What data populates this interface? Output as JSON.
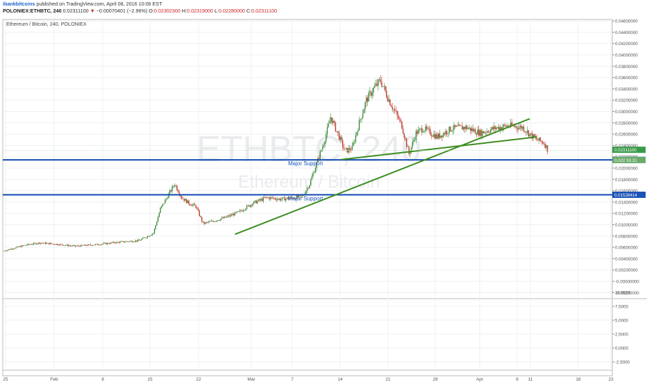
{
  "header": {
    "author": "ibankbitcoins",
    "published": "published on TradingView.com, April 08, 2016 10:06 EST",
    "symbol": "POLONIEX:ETHBTC, 240",
    "last": "0.02311100",
    "change_arrow": "▼",
    "change": "−0.00070401 (−2.96%)",
    "o_label": "O:",
    "o": "0.02302300",
    "h_label": "H:",
    "h": "0.02319000",
    "l_label": "L:",
    "l": "0.02280000",
    "c_label": "C:",
    "c": "0.02311100"
  },
  "chart_data": {
    "type": "candlestick",
    "title": "Ethereum / Bitcoin, 240, POLONIEX",
    "watermark_symbol": "ETHBTC, 240",
    "watermark_name": "Ethereum / Bitcoin",
    "x_ticks": [
      "25",
      "Feb",
      "8",
      "15",
      "22",
      "Mar",
      "7",
      "14",
      "21",
      "28",
      "Apr",
      "6",
      "11",
      "18",
      "23"
    ],
    "price_axis": {
      "ticks": [
        "0.04600000",
        "0.04400000",
        "0.04200000",
        "0.04000000",
        "0.03800000",
        "0.03600000",
        "0.03400000",
        "0.03200000",
        "0.03000000",
        "0.02800000",
        "0.02600000",
        "0.02400000",
        "0.02200000",
        "0.02000000",
        "0.01800000",
        "0.01600000",
        "0.01400000",
        "0.01200000",
        "0.01000000",
        "0.00800000",
        "0.00600000",
        "0.00400000",
        "0.00200000",
        "-0.00000000",
        "-0.00200000"
      ],
      "ylim": [
        -0.0025,
        0.0475
      ]
    },
    "indicator_axis": {
      "ticks": [
        "10.0000",
        "7.5000",
        "5.0000",
        "2.5000",
        "0.0000",
        "-2.5000"
      ],
      "ylim": [
        -3.5,
        11.5
      ]
    },
    "price_series_close": [
      [
        0,
        0.0054
      ],
      [
        3,
        0.0064
      ],
      [
        5,
        0.0068
      ],
      [
        7,
        0.0066
      ],
      [
        10,
        0.0062
      ],
      [
        13,
        0.0065
      ],
      [
        16,
        0.0069
      ],
      [
        19,
        0.0072
      ],
      [
        21,
        0.0085
      ],
      [
        22,
        0.0128
      ],
      [
        23,
        0.015
      ],
      [
        24,
        0.0172
      ],
      [
        25,
        0.0148
      ],
      [
        26,
        0.0138
      ],
      [
        27,
        0.0132
      ],
      [
        28,
        0.0102
      ],
      [
        29,
        0.0105
      ],
      [
        31,
        0.0112
      ],
      [
        33,
        0.0122
      ],
      [
        35,
        0.0138
      ],
      [
        37,
        0.0148
      ],
      [
        39,
        0.0145
      ],
      [
        41,
        0.0148
      ],
      [
        42,
        0.015
      ],
      [
        43,
        0.0172
      ],
      [
        44,
        0.0208
      ],
      [
        45,
        0.0245
      ],
      [
        46,
        0.029
      ],
      [
        47,
        0.026
      ],
      [
        48,
        0.023
      ],
      [
        49,
        0.0235
      ],
      [
        50,
        0.028
      ],
      [
        51,
        0.032
      ],
      [
        52,
        0.034
      ],
      [
        53,
        0.0355
      ],
      [
        54,
        0.0325
      ],
      [
        55,
        0.03
      ],
      [
        56,
        0.0275
      ],
      [
        57,
        0.0225
      ],
      [
        58,
        0.0262
      ],
      [
        59,
        0.027
      ],
      [
        61,
        0.0255
      ],
      [
        63,
        0.027
      ],
      [
        65,
        0.0272
      ],
      [
        67,
        0.0262
      ],
      [
        69,
        0.027
      ],
      [
        71,
        0.0275
      ],
      [
        73,
        0.0272
      ],
      [
        74,
        0.026
      ],
      [
        75,
        0.025
      ],
      [
        76,
        0.0245
      ],
      [
        76.6,
        0.0231
      ]
    ],
    "horizontal_lines": [
      {
        "label": "Major Support",
        "value": 0.0214483,
        "tag": "0.02144830"
      },
      {
        "label": "Major Support",
        "value": 0.01528414,
        "tag": "0.01528414"
      }
    ],
    "trendlines": [
      {
        "from": [
          32.5,
          0.0083
        ],
        "to": [
          74,
          0.0287
        ]
      },
      {
        "from": [
          47.5,
          0.0215
        ],
        "to": [
          75,
          0.0255
        ]
      }
    ],
    "current_tags": [
      {
        "value": 0.023111,
        "tag": "0.02311100",
        "color": "#3a9a4a"
      },
      {
        "value": 0.0218,
        "tag": "0.022 53.31",
        "color": "#6aab6a"
      }
    ],
    "colors": {
      "up": "#3a8a3a",
      "down": "#c0392b",
      "support": "#1a52b5",
      "trend": "#3c8c1e"
    }
  }
}
